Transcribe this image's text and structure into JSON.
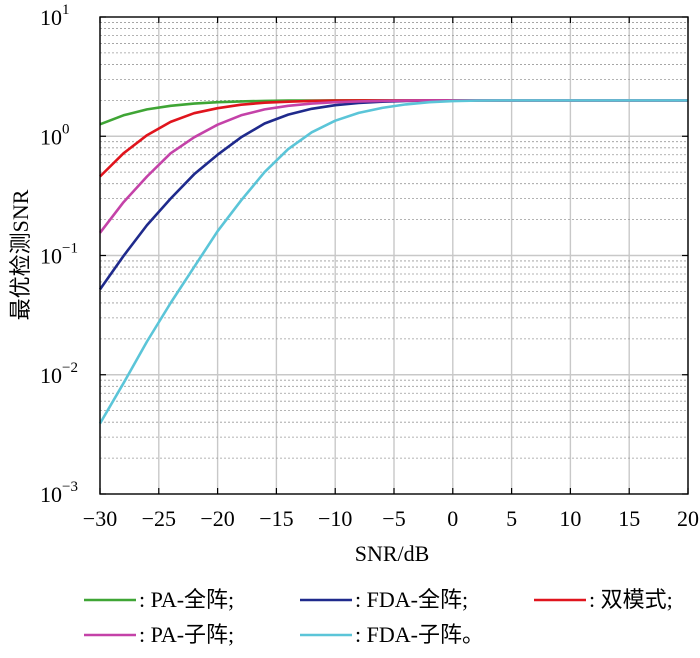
{
  "chart_data": {
    "type": "line",
    "xlabel": "SNR/dB",
    "ylabel": "最优检测SNR",
    "xlim": [
      -30,
      20
    ],
    "ylim": [
      0.001,
      10
    ],
    "yscale": "log",
    "grid": true,
    "legend_position": "bottom",
    "x_ticks": [
      -30,
      -25,
      -20,
      -15,
      -10,
      -5,
      0,
      5,
      10,
      15,
      20
    ],
    "x_tick_labels": [
      "−30",
      "−25",
      "−20",
      "−15",
      "−10",
      "−5",
      "0",
      "5",
      "10",
      "15",
      "20"
    ],
    "y_ticks": [
      {
        "value": 0.001,
        "base": "10",
        "exp": "−3"
      },
      {
        "value": 0.01,
        "base": "10",
        "exp": "−2"
      },
      {
        "value": 0.1,
        "base": "10",
        "exp": "−1"
      },
      {
        "value": 1,
        "base": "10",
        "exp": "0"
      },
      {
        "value": 10,
        "base": "10",
        "exp": "1"
      }
    ],
    "x": [
      -30,
      -28,
      -26,
      -24,
      -22,
      -20,
      -18,
      -16,
      -14,
      -12,
      -10,
      -8,
      -6,
      -4,
      -2,
      0,
      2,
      4,
      6,
      8,
      10,
      12,
      14,
      16,
      18,
      20
    ],
    "series": [
      {
        "name": ": PA-全阵;",
        "color": "#3fa535",
        "values": [
          1.26,
          1.5,
          1.68,
          1.8,
          1.88,
          1.93,
          1.96,
          1.98,
          1.99,
          1.995,
          2,
          2,
          2,
          2,
          2,
          2,
          2,
          2,
          2,
          2,
          2,
          2,
          2,
          2,
          2,
          2
        ]
      },
      {
        "name": ": FDA-全阵;",
        "color": "#1f2a8c",
        "values": [
          0.052,
          0.099,
          0.18,
          0.3,
          0.48,
          0.7,
          0.98,
          1.28,
          1.52,
          1.7,
          1.82,
          1.9,
          1.95,
          1.98,
          1.99,
          2,
          2,
          2,
          2,
          2,
          2,
          2,
          2,
          2,
          2,
          2
        ]
      },
      {
        "name": ": 双模式;",
        "color": "#e0141d",
        "values": [
          0.46,
          0.72,
          1.02,
          1.32,
          1.56,
          1.72,
          1.84,
          1.91,
          1.95,
          1.98,
          1.99,
          2,
          2,
          2,
          2,
          2,
          2,
          2,
          2,
          2,
          2,
          2,
          2,
          2,
          2,
          2
        ]
      },
      {
        "name": ": PA-子阵;",
        "color": "#c442a8",
        "values": [
          0.155,
          0.28,
          0.46,
          0.72,
          0.98,
          1.25,
          1.5,
          1.68,
          1.8,
          1.88,
          1.93,
          1.96,
          1.98,
          1.99,
          2,
          2,
          2,
          2,
          2,
          2,
          2,
          2,
          2,
          2,
          2,
          2
        ]
      },
      {
        "name": ": FDA-子阵。",
        "color": "#5bc5d8",
        "values": [
          0.0039,
          0.0085,
          0.019,
          0.04,
          0.08,
          0.16,
          0.29,
          0.5,
          0.78,
          1.08,
          1.35,
          1.57,
          1.73,
          1.85,
          1.93,
          1.97,
          1.99,
          2,
          2,
          2,
          2,
          2,
          2,
          2,
          2,
          2
        ]
      }
    ]
  }
}
